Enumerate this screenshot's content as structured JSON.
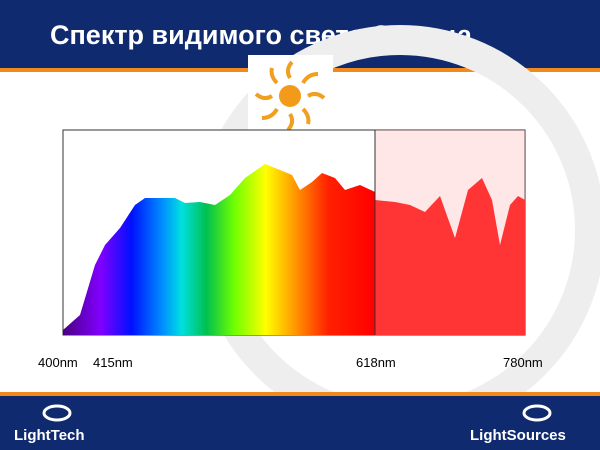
{
  "header": {
    "title": "Спектр видимого света Солнца"
  },
  "spectrum": {
    "labels": [
      "400nm",
      "415nm",
      "618nm",
      "780nm"
    ]
  },
  "footer": {
    "logos": [
      "LightTech",
      "LightSources"
    ]
  }
}
